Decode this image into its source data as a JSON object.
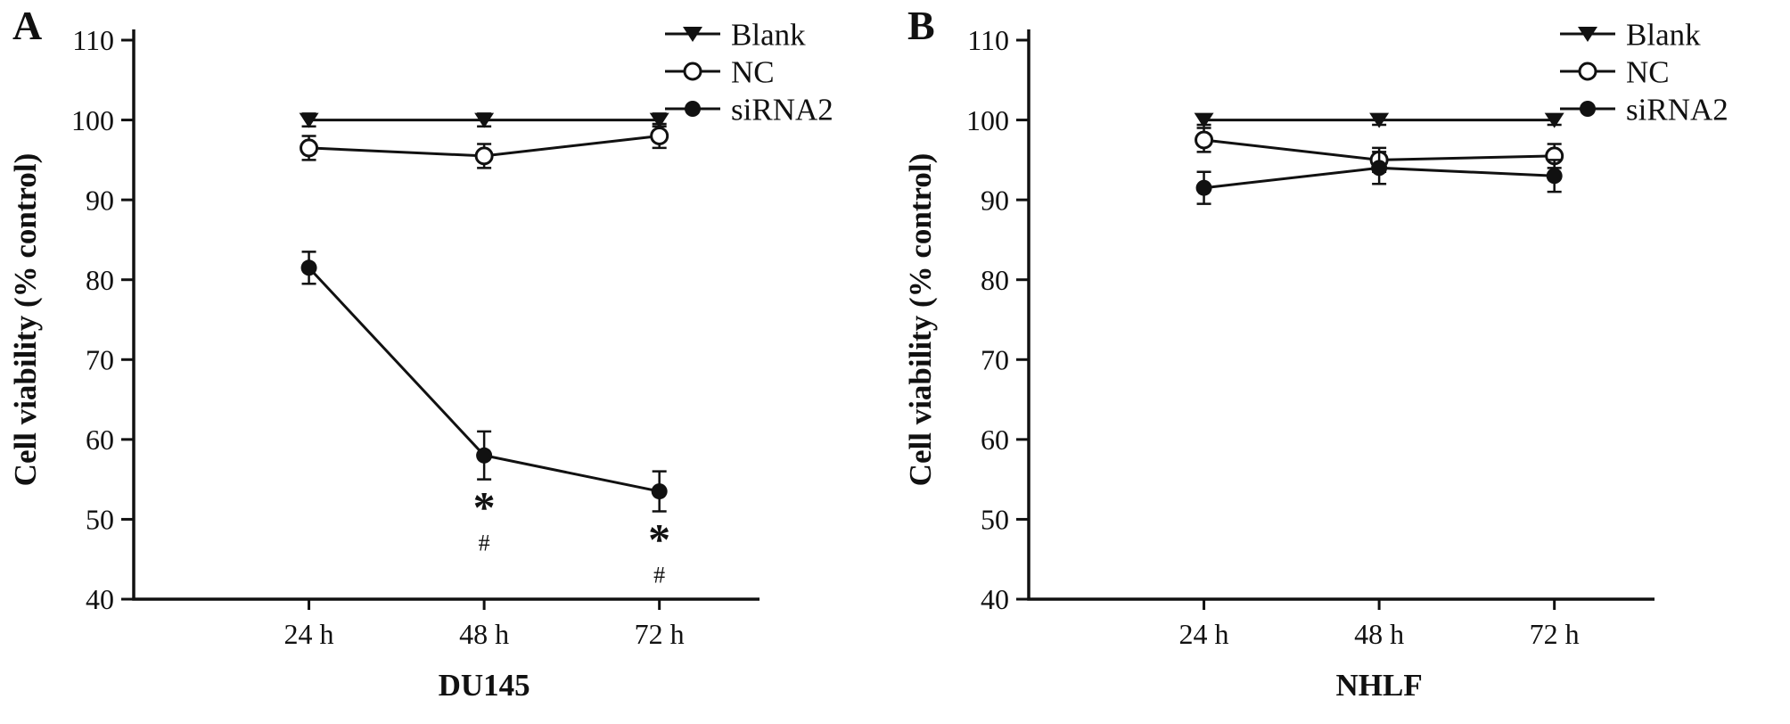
{
  "figure": {
    "background": "#ffffff",
    "ink_color": "#111111",
    "panel_letters": [
      "A",
      "B"
    ]
  },
  "chart_data": [
    {
      "type": "line",
      "panel_label": "A",
      "title": "",
      "xlabel": "DU145",
      "ylabel": "Cell viability (% control)",
      "categories": [
        "24 h",
        "48 h",
        "72 h"
      ],
      "ylim": [
        40,
        110
      ],
      "yticks": [
        40,
        50,
        60,
        70,
        80,
        90,
        100,
        110
      ],
      "grid": false,
      "legend_position": "top-right",
      "series": [
        {
          "name": "Blank",
          "marker": "triangle-down-filled",
          "values": [
            100,
            100,
            100
          ],
          "errors": [
            0.8,
            0.8,
            0.8
          ]
        },
        {
          "name": "NC",
          "marker": "circle-open",
          "values": [
            96.5,
            95.5,
            98
          ],
          "errors": [
            1.5,
            1.5,
            1.5
          ]
        },
        {
          "name": "siRNA2",
          "marker": "circle-filled",
          "values": [
            81.5,
            58,
            53.5
          ],
          "errors": [
            2,
            3,
            2.5
          ]
        }
      ],
      "annotations": [
        {
          "series": "siRNA2",
          "category": "48 h",
          "symbols": [
            "*",
            "#"
          ]
        },
        {
          "series": "siRNA2",
          "category": "72 h",
          "symbols": [
            "*",
            "#"
          ]
        }
      ]
    },
    {
      "type": "line",
      "panel_label": "B",
      "title": "",
      "xlabel": "NHLF",
      "ylabel": "Cell viability (% control)",
      "categories": [
        "24 h",
        "48 h",
        "72 h"
      ],
      "ylim": [
        40,
        110
      ],
      "yticks": [
        40,
        50,
        60,
        70,
        80,
        90,
        100,
        110
      ],
      "grid": false,
      "legend_position": "top-right",
      "series": [
        {
          "name": "Blank",
          "marker": "triangle-down-filled",
          "values": [
            100,
            100,
            100
          ],
          "errors": [
            0.6,
            0.6,
            0.6
          ]
        },
        {
          "name": "NC",
          "marker": "circle-open",
          "values": [
            97.5,
            95,
            95.5
          ],
          "errors": [
            1.5,
            1.5,
            1.5
          ]
        },
        {
          "name": "siRNA2",
          "marker": "circle-filled",
          "values": [
            91.5,
            94,
            93
          ],
          "errors": [
            2,
            2,
            2
          ]
        }
      ],
      "annotations": []
    }
  ]
}
